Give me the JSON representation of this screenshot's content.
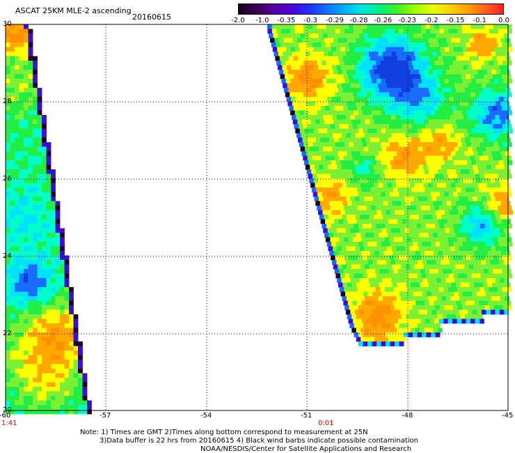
{
  "header": {
    "title": "ASCAT 25KM MLE-2 ascending",
    "date": "20160615"
  },
  "colorbar": {
    "labels": [
      "-2.0",
      "-1.0",
      "-0.35",
      "-0.3",
      "-0.29",
      "-0.28",
      "-0.26",
      "-0.23",
      "-0.2",
      "-0.15",
      "-0.1",
      "0.0"
    ],
    "colors": [
      "#1a001a",
      "#3a0050",
      "#5a00a0",
      "#5000d8",
      "#2030ff",
      "#1070ff",
      "#00b0ff",
      "#00e8e0",
      "#00f080",
      "#40f020",
      "#a0ff00",
      "#e8ff00",
      "#ffd000",
      "#ffa000",
      "#ff6020",
      "#ff2020"
    ]
  },
  "map": {
    "lat_labels": [
      "30",
      "28",
      "26",
      "24",
      "22",
      "20"
    ],
    "lon_labels": [
      "-60",
      "-57",
      "-54",
      "-51",
      "-48",
      "-45"
    ],
    "time_labels": [
      "1:41",
      "0:01"
    ],
    "palette": {
      "dkblue": "#1040e0",
      "blue": "#1a6cff",
      "cyan": "#00e0ff",
      "teal": "#00ffc8",
      "green": "#22ee44",
      "lime": "#7cf034",
      "yellow": "#ffff00",
      "orange": "#ffa800",
      "dkorange": "#ff9000",
      "indigo": "#3a10d0",
      "black": "#200020"
    }
  },
  "notes": {
    "line1": "Note: 1) Times are GMT 2)Times along bottom correspond to measurement at 25N",
    "line2": "3)Data buffer is 22 hrs from 20160615 4) Black wind barbs indicate possible contamination",
    "line3": "NOAA/NESDIS/Center for Satellite Applications and Research"
  }
}
